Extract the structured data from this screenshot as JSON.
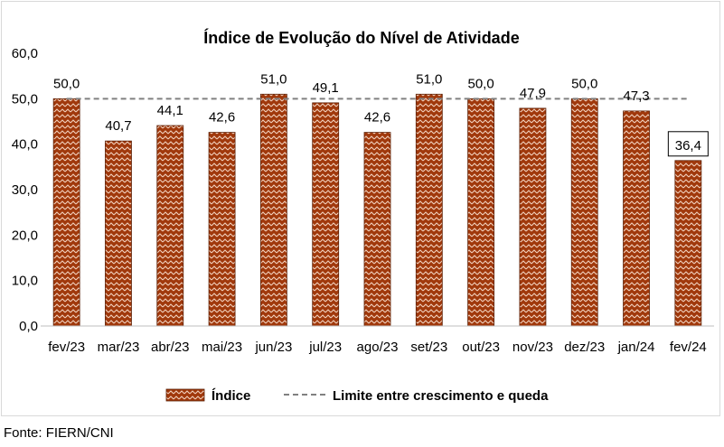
{
  "source": "Fonte: FIERN/CNI",
  "chart_data": {
    "type": "bar",
    "title": "Índice de Evolução do Nível de Atividade",
    "categories": [
      "fev/23",
      "mar/23",
      "abr/23",
      "mai/23",
      "jun/23",
      "jul/23",
      "ago/23",
      "set/23",
      "out/23",
      "nov/23",
      "dez/23",
      "jan/24",
      "fev/24"
    ],
    "series": [
      {
        "name": "Índice",
        "values": [
          50.0,
          40.7,
          44.1,
          42.6,
          51.0,
          49.1,
          42.6,
          51.0,
          50.0,
          47.9,
          50.0,
          47.3,
          36.4
        ]
      }
    ],
    "value_labels": [
      "50,0",
      "40,7",
      "44,1",
      "42,6",
      "51,0",
      "49,1",
      "42,6",
      "51,0",
      "50,0",
      "47,9",
      "50,0",
      "47,3",
      "36,4"
    ],
    "reference_line": {
      "name": "Limite entre crescimento e queda",
      "value": 50
    },
    "ylim": [
      0,
      60
    ],
    "yticks": [
      0,
      10,
      20,
      30,
      40,
      50,
      60
    ],
    "ytick_labels": [
      "0,0",
      "10,0",
      "20,0",
      "30,0",
      "40,0",
      "50,0",
      "60,0"
    ],
    "highlighted_label_index": 12,
    "legend_position": "bottom",
    "grid": false,
    "colors": {
      "bar": "#a0380b",
      "bar_pattern": "#f3d2bf",
      "bar_edge": "#5a1e04",
      "reference": "#808080"
    }
  }
}
